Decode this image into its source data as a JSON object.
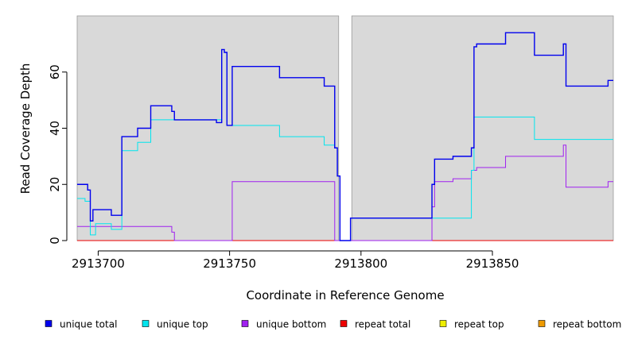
{
  "chart_data": {
    "type": "line",
    "xlabel": "Coordinate in Reference Genome",
    "ylabel": "Read Coverage Depth",
    "xlim": [
      2913692,
      2913896
    ],
    "ylim": [
      0,
      80
    ],
    "x_ticks": [
      {
        "value": 2913700,
        "label": "2913700"
      },
      {
        "value": 2913750,
        "label": "2913750"
      },
      {
        "value": 2913800,
        "label": "2913800"
      },
      {
        "value": 2913850,
        "label": "2913850"
      }
    ],
    "y_ticks": [
      {
        "value": 0,
        "label": "0"
      },
      {
        "value": 20,
        "label": "20"
      },
      {
        "value": 40,
        "label": "40"
      },
      {
        "value": 60,
        "label": "60"
      }
    ],
    "background_color": "#d9d9d9",
    "gaps": [
      [
        2913791.5,
        2913796.5
      ]
    ],
    "legend_position": "bottom",
    "series": [
      {
        "name": "unique total",
        "color": "#0000ee",
        "points": [
          [
            2913692,
            20
          ],
          [
            2913696,
            20
          ],
          [
            2913696,
            18
          ],
          [
            2913697,
            18
          ],
          [
            2913697,
            7
          ],
          [
            2913698,
            7
          ],
          [
            2913698,
            11
          ],
          [
            2913705,
            11
          ],
          [
            2913705,
            9
          ],
          [
            2913709,
            9
          ],
          [
            2913709,
            37
          ],
          [
            2913715,
            37
          ],
          [
            2913715,
            40
          ],
          [
            2913720,
            40
          ],
          [
            2913720,
            48
          ],
          [
            2913728,
            48
          ],
          [
            2913728,
            46
          ],
          [
            2913729,
            46
          ],
          [
            2913729,
            43
          ],
          [
            2913745,
            43
          ],
          [
            2913745,
            42
          ],
          [
            2913747,
            42
          ],
          [
            2913747,
            68
          ],
          [
            2913748,
            68
          ],
          [
            2913748,
            67
          ],
          [
            2913749,
            67
          ],
          [
            2913749,
            41
          ],
          [
            2913751,
            41
          ],
          [
            2913751,
            62
          ],
          [
            2913769,
            62
          ],
          [
            2913769,
            58
          ],
          [
            2913786,
            58
          ],
          [
            2913786,
            55
          ],
          [
            2913790,
            55
          ],
          [
            2913790,
            33
          ],
          [
            2913791,
            33
          ],
          [
            2913791,
            23
          ],
          [
            2913792,
            23
          ],
          [
            2913792,
            0
          ],
          [
            2913796,
            0
          ],
          [
            2913796,
            8
          ],
          [
            2913827,
            8
          ],
          [
            2913827,
            20
          ],
          [
            2913828,
            20
          ],
          [
            2913828,
            29
          ],
          [
            2913835,
            29
          ],
          [
            2913835,
            30
          ],
          [
            2913842,
            30
          ],
          [
            2913842,
            33
          ],
          [
            2913843,
            33
          ],
          [
            2913843,
            69
          ],
          [
            2913844,
            69
          ],
          [
            2913844,
            70
          ],
          [
            2913855,
            70
          ],
          [
            2913855,
            74
          ],
          [
            2913866,
            74
          ],
          [
            2913866,
            66
          ],
          [
            2913877,
            66
          ],
          [
            2913877,
            70
          ],
          [
            2913878,
            70
          ],
          [
            2913878,
            55
          ],
          [
            2913894,
            55
          ],
          [
            2913894,
            57
          ],
          [
            2913896,
            57
          ]
        ]
      },
      {
        "name": "unique top",
        "color": "#00e5ee",
        "points": [
          [
            2913692,
            15
          ],
          [
            2913695,
            15
          ],
          [
            2913695,
            14
          ],
          [
            2913697,
            14
          ],
          [
            2913697,
            2
          ],
          [
            2913699,
            2
          ],
          [
            2913699,
            6
          ],
          [
            2913705,
            6
          ],
          [
            2913705,
            4
          ],
          [
            2913709,
            4
          ],
          [
            2913709,
            32
          ],
          [
            2913715,
            32
          ],
          [
            2913715,
            35
          ],
          [
            2913720,
            35
          ],
          [
            2913720,
            43
          ],
          [
            2913747,
            43
          ],
          [
            2913747,
            68
          ],
          [
            2913748,
            68
          ],
          [
            2913748,
            67
          ],
          [
            2913749,
            67
          ],
          [
            2913749,
            41
          ],
          [
            2913769,
            41
          ],
          [
            2913769,
            37
          ],
          [
            2913786,
            37
          ],
          [
            2913786,
            34
          ],
          [
            2913790,
            34
          ],
          [
            2913790,
            33
          ],
          [
            2913791,
            33
          ],
          [
            2913791,
            23
          ],
          [
            2913792,
            23
          ],
          [
            2913792,
            0
          ],
          [
            2913796,
            0
          ],
          [
            2913796,
            8
          ],
          [
            2913842,
            8
          ],
          [
            2913842,
            25
          ],
          [
            2913843,
            25
          ],
          [
            2913843,
            44
          ],
          [
            2913866,
            44
          ],
          [
            2913866,
            36
          ],
          [
            2913896,
            36
          ]
        ]
      },
      {
        "name": "unique bottom",
        "color": "#a020f0",
        "points": [
          [
            2913692,
            5
          ],
          [
            2913728,
            5
          ],
          [
            2913728,
            3
          ],
          [
            2913729,
            3
          ],
          [
            2913729,
            0
          ],
          [
            2913751,
            0
          ],
          [
            2913751,
            21
          ],
          [
            2913790,
            21
          ],
          [
            2913790,
            0
          ],
          [
            2913827,
            0
          ],
          [
            2913827,
            12
          ],
          [
            2913828,
            12
          ],
          [
            2913828,
            21
          ],
          [
            2913835,
            21
          ],
          [
            2913835,
            22
          ],
          [
            2913842,
            22
          ],
          [
            2913842,
            25
          ],
          [
            2913844,
            25
          ],
          [
            2913844,
            26
          ],
          [
            2913855,
            26
          ],
          [
            2913855,
            30
          ],
          [
            2913877,
            30
          ],
          [
            2913877,
            34
          ],
          [
            2913878,
            34
          ],
          [
            2913878,
            19
          ],
          [
            2913894,
            19
          ],
          [
            2913894,
            21
          ],
          [
            2913896,
            21
          ]
        ]
      },
      {
        "name": "repeat total",
        "color": "#ee0000",
        "points": [
          [
            2913692,
            0
          ],
          [
            2913896,
            0
          ]
        ]
      },
      {
        "name": "repeat top",
        "color": "#eeee00",
        "points": [
          [
            2913692,
            0
          ],
          [
            2913896,
            0
          ]
        ]
      },
      {
        "name": "repeat bottom",
        "color": "#ee9a00",
        "points": [
          [
            2913692,
            0
          ],
          [
            2913896,
            0
          ]
        ]
      }
    ]
  }
}
